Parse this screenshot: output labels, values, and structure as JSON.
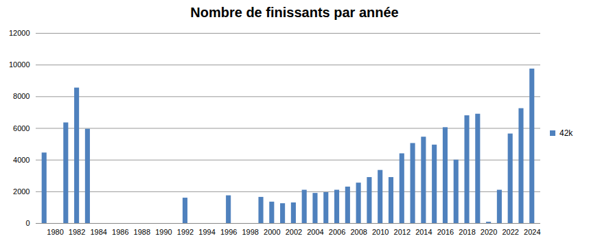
{
  "chart_data": {
    "type": "bar",
    "title": "Nombre de finissants par année",
    "categories": [
      null,
      "1980",
      null,
      "1982",
      null,
      "1984",
      null,
      "1986",
      null,
      "1988",
      null,
      "1990",
      null,
      "1992",
      null,
      "1994",
      null,
      "1996",
      null,
      "1998",
      null,
      "2000",
      null,
      "2002",
      null,
      "2004",
      null,
      "2006",
      null,
      "2008",
      null,
      "2010",
      null,
      "2012",
      null,
      "2014",
      null,
      "2016",
      null,
      "2018",
      null,
      "2020",
      null,
      "2022",
      null,
      "2024"
    ],
    "series": [
      {
        "name": "42k",
        "color": "#4f81bd",
        "values": [
          4450,
          0,
          6350,
          8550,
          5950,
          0,
          0,
          0,
          0,
          0,
          0,
          0,
          0,
          1600,
          0,
          0,
          0,
          1750,
          0,
          0,
          1650,
          1350,
          1250,
          1300,
          2100,
          1900,
          1950,
          2100,
          2300,
          2550,
          2900,
          3350,
          2900,
          4400,
          5050,
          5450,
          4950,
          6050,
          4000,
          6800,
          6900,
          80,
          2100,
          5650,
          7250,
          9750
        ]
      }
    ],
    "ylim": [
      0,
      12000
    ],
    "yticks": [
      0,
      2000,
      4000,
      6000,
      8000,
      10000,
      12000
    ],
    "grid": true,
    "legend": "right"
  }
}
